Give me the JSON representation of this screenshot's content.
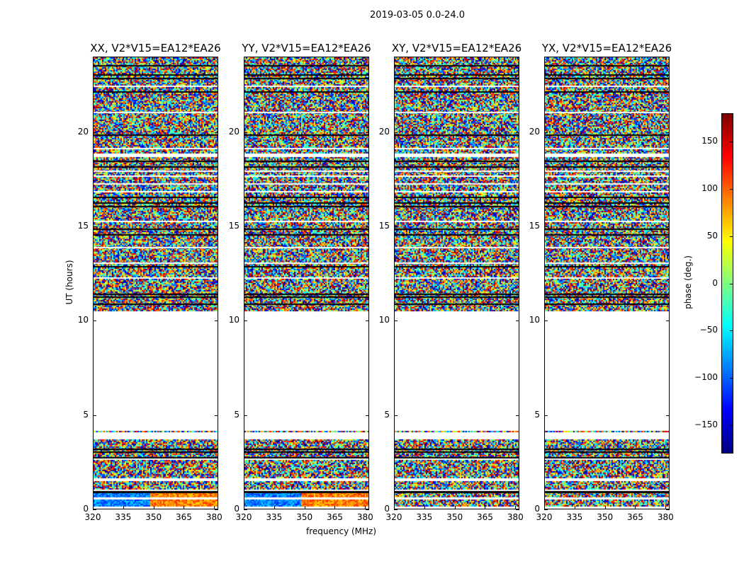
{
  "chart_data": {
    "type": "heatmap",
    "title": "2019-03-05 0.0-24.0",
    "xlabel": "frequency (MHz)",
    "ylabel": "UT (hours)",
    "xlim": [
      320,
      382
    ],
    "ylim": [
      0,
      24
    ],
    "xticks": [
      320,
      335,
      350,
      365,
      380
    ],
    "yticks": [
      0,
      5,
      10,
      15,
      20
    ],
    "panels": [
      {
        "title": "XX, V2*V15=EA12*EA26"
      },
      {
        "title": "YY, V2*V15=EA12*EA26"
      },
      {
        "title": "XY, V2*V15=EA12*EA26"
      },
      {
        "title": "YX, V2*V15=EA12*EA26"
      }
    ],
    "data_ranges_hours": [
      [
        0.1,
        0.5
      ],
      [
        0.6,
        0.85
      ],
      [
        1.0,
        1.45
      ],
      [
        1.6,
        2.6
      ],
      [
        2.7,
        3.7
      ],
      [
        4.05,
        4.12
      ],
      [
        10.5,
        18.7
      ],
      [
        18.9,
        24.0
      ]
    ],
    "flagged_lines_hours": [
      0.9,
      0.95,
      3.05,
      3.2,
      2.75,
      10.9,
      11.3,
      11.45,
      12.9,
      14.6,
      14.9,
      16.1,
      16.3,
      16.6,
      18.2,
      18.5,
      19.9,
      22.2,
      22.9,
      23.1,
      23.6
    ],
    "gap_lines_hours": [
      12.3,
      13.1,
      13.9,
      15.3,
      16.9,
      17.3,
      17.7,
      18.0,
      19.2,
      21.1,
      22.5
    ],
    "colorbar": {
      "label": "phase (deg.)",
      "range": [
        -180,
        180
      ],
      "ticks": [
        -150,
        -100,
        -50,
        0,
        50,
        100,
        150
      ],
      "tick_labels": [
        "−150",
        "−100",
        "−50",
        "0",
        "50",
        "100",
        "150"
      ],
      "colormap": "jet"
    }
  }
}
